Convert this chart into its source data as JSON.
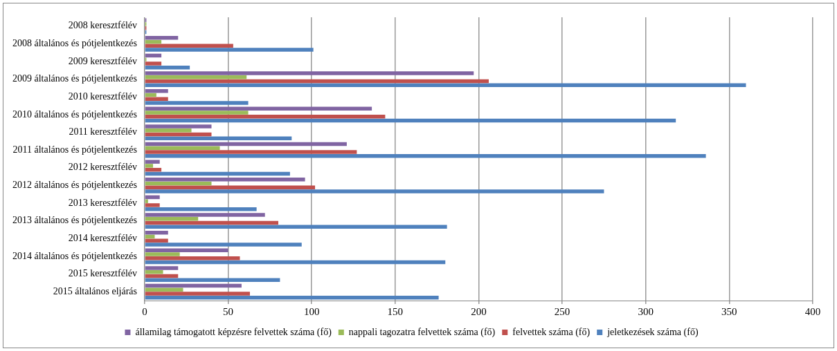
{
  "chart_data": {
    "type": "bar",
    "orientation": "horizontal",
    "categories": [
      "2008 keresztfélév",
      "2008 általános és pótjelentkezés",
      "2009 keresztfélév",
      "2009 általános és pótjelentkezés",
      "2010 keresztfélév",
      "2010 általános és pótjelentkezés",
      "2011 keresztfélév",
      "2011 általános és pótjelentkezés",
      "2012 keresztfélév",
      "2012 általános és pótjelentkezés",
      "2013 keresztfélév",
      "2013 általános és pótjelentkezés",
      "2014 keresztfélév",
      "2014 általános és pótjelentkezés",
      "2015 keresztfélév",
      "2015 általános eljárás"
    ],
    "series": [
      {
        "name": "államilag támogatott képzésre felvettek száma (fő)",
        "color": "#8064a2",
        "values": [
          1,
          20,
          10,
          197,
          14,
          136,
          40,
          121,
          9,
          96,
          9,
          72,
          14,
          50,
          20,
          58
        ]
      },
      {
        "name": "nappali tagozatra felvettek száma (fő)",
        "color": "#9bbb59",
        "values": [
          1,
          10,
          1,
          61,
          7,
          62,
          28,
          45,
          5,
          40,
          2,
          32,
          6,
          21,
          11,
          23
        ]
      },
      {
        "name": "felvettek száma (fő)",
        "color": "#c0504d",
        "values": [
          1,
          53,
          10,
          206,
          14,
          144,
          40,
          127,
          10,
          102,
          9,
          80,
          14,
          57,
          20,
          63
        ]
      },
      {
        "name": "jeletkezések száma (fő)",
        "color": "#4f81bd",
        "values": [
          1,
          101,
          27,
          360,
          62,
          318,
          88,
          336,
          87,
          275,
          67,
          181,
          94,
          180,
          81,
          176
        ]
      }
    ],
    "xlim": [
      0,
      400
    ],
    "xticks": [
      0,
      50,
      100,
      150,
      200,
      250,
      300,
      350,
      400
    ],
    "grid": "x",
    "legend": "bottom"
  }
}
